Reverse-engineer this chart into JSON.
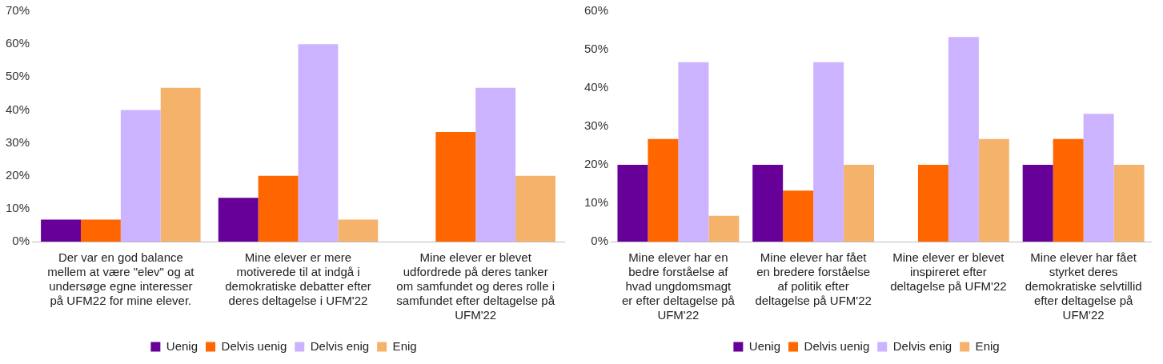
{
  "chart_data": [
    {
      "type": "bar",
      "categories": [
        "Der var en god balance mellem at være \"elev\" og at undersøge egne interesser på UFM22 for mine elever.",
        "Mine elever er mere motiverede til at indgå i demokratiske debatter efter deres deltagelse i UFM'22",
        "Mine elever er blevet udfordrede på deres tanker om samfundet og deres rolle i samfundet efter deltagelse på UFM'22"
      ],
      "series": [
        {
          "name": "Uenig",
          "color": "#660099",
          "values": [
            6.7,
            13.3,
            0
          ]
        },
        {
          "name": "Delvis uenig",
          "color": "#ff6600",
          "values": [
            6.7,
            20,
            33.3
          ]
        },
        {
          "name": "Delvis enig",
          "color": "#ccb3ff",
          "values": [
            40,
            60,
            46.7
          ]
        },
        {
          "name": "Enig",
          "color": "#f5b26b",
          "values": [
            46.7,
            6.7,
            20
          ]
        }
      ],
      "ylim": [
        0,
        70
      ],
      "yticks": [
        {
          "value": 0,
          "label": "0%"
        },
        {
          "value": 10,
          "label": "10%"
        },
        {
          "value": 20,
          "label": "20%"
        },
        {
          "value": 30,
          "label": "30%"
        },
        {
          "value": 40,
          "label": "40%"
        },
        {
          "value": 50,
          "label": "50%"
        },
        {
          "value": 60,
          "label": "60%"
        },
        {
          "value": 70,
          "label": "70%"
        }
      ],
      "grid": false,
      "legend": "bottom"
    },
    {
      "type": "bar",
      "categories": [
        "Mine elever har en bedre forståelse af hvad ungdomsmagt er efter deltagelse på UFM'22",
        "Mine elever har fået en bredere forståelse af politik efter deltagelse på UFM'22",
        "Mine elever er blevet inspireret efter deltagelse på UFM'22",
        "Mine elever har fået styrket deres demokratiske selvtillid efter deltagelse på UFM'22"
      ],
      "series": [
        {
          "name": "Uenig",
          "color": "#660099",
          "values": [
            20,
            20,
            0,
            20
          ]
        },
        {
          "name": "Delvis uenig",
          "color": "#ff6600",
          "values": [
            26.7,
            13.3,
            20,
            26.7
          ]
        },
        {
          "name": "Delvis enig",
          "color": "#ccb3ff",
          "values": [
            46.7,
            46.7,
            53.3,
            33.3
          ]
        },
        {
          "name": "Enig",
          "color": "#f5b26b",
          "values": [
            6.7,
            20,
            26.7,
            20
          ]
        }
      ],
      "ylim": [
        0,
        60
      ],
      "yticks": [
        {
          "value": 0,
          "label": "0%"
        },
        {
          "value": 10,
          "label": "10%"
        },
        {
          "value": 20,
          "label": "20%"
        },
        {
          "value": 30,
          "label": "30%"
        },
        {
          "value": 40,
          "label": "40%"
        },
        {
          "value": 50,
          "label": "50%"
        },
        {
          "value": 60,
          "label": "60%"
        }
      ],
      "grid": false,
      "legend": "bottom"
    }
  ]
}
